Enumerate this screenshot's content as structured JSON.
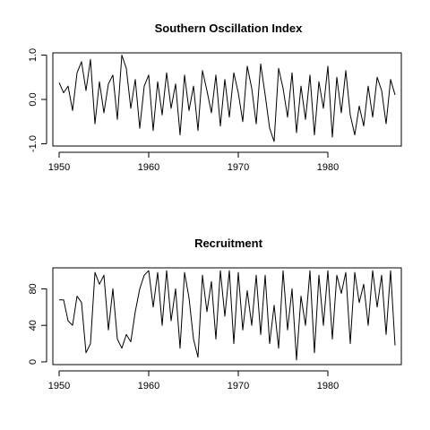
{
  "chart_data": [
    {
      "type": "line",
      "title": "Southern Oscillation Index",
      "xlabel": "",
      "ylabel": "",
      "xlim": [
        1949.3,
        1988.2
      ],
      "ylim": [
        -1.05,
        1.05
      ],
      "xticks": [
        1950,
        1960,
        1970,
        1980
      ],
      "yticks": [
        -1.0,
        0.0,
        1.0
      ],
      "ytick_labels": [
        "-1.0",
        "0.0",
        "1.0"
      ],
      "grid": false,
      "x": [
        1950.0,
        1950.5,
        1951.0,
        1951.5,
        1952.0,
        1952.5,
        1953.0,
        1953.5,
        1954.0,
        1954.5,
        1955.0,
        1955.5,
        1956.0,
        1956.5,
        1957.0,
        1957.5,
        1958.0,
        1958.5,
        1959.0,
        1959.5,
        1960.0,
        1960.5,
        1961.0,
        1961.5,
        1962.0,
        1962.5,
        1963.0,
        1963.5,
        1964.0,
        1964.5,
        1965.0,
        1965.5,
        1966.0,
        1966.5,
        1967.0,
        1967.5,
        1968.0,
        1968.5,
        1969.0,
        1969.5,
        1970.0,
        1970.5,
        1971.0,
        1971.5,
        1972.0,
        1972.5,
        1973.0,
        1973.5,
        1974.0,
        1974.5,
        1975.0,
        1975.5,
        1976.0,
        1976.5,
        1977.0,
        1977.5,
        1978.0,
        1978.5,
        1979.0,
        1979.5,
        1980.0,
        1980.5,
        1981.0,
        1981.5,
        1982.0,
        1982.5,
        1983.0,
        1983.5,
        1984.0,
        1984.5,
        1985.0,
        1985.5,
        1986.0,
        1986.5,
        1987.0,
        1987.5
      ],
      "series": [
        {
          "values": [
            0.38,
            0.15,
            0.3,
            -0.25,
            0.6,
            0.85,
            0.2,
            0.9,
            -0.55,
            0.4,
            -0.3,
            0.35,
            0.55,
            -0.45,
            1.0,
            0.7,
            -0.2,
            0.45,
            -0.65,
            0.3,
            0.55,
            -0.7,
            0.4,
            -0.35,
            0.6,
            -0.2,
            0.35,
            -0.8,
            0.55,
            -0.25,
            0.3,
            -0.7,
            0.65,
            0.2,
            -0.3,
            0.55,
            -0.6,
            0.45,
            -0.4,
            0.6,
            0.15,
            -0.5,
            0.75,
            0.25,
            -0.55,
            0.8,
            0.1,
            -0.65,
            -0.95,
            0.7,
            0.25,
            -0.4,
            0.6,
            -0.75,
            0.3,
            -0.45,
            0.55,
            -0.8,
            0.4,
            -0.2,
            0.75,
            -0.85,
            0.5,
            -0.3,
            0.65,
            -0.35,
            -0.8,
            -0.15,
            -0.6,
            0.3,
            -0.4,
            0.5,
            0.2,
            -0.55,
            0.45,
            0.1
          ]
        }
      ]
    },
    {
      "type": "line",
      "title": "Recruitment",
      "xlabel": "",
      "ylabel": "",
      "xlim": [
        1949.3,
        1988.2
      ],
      "ylim": [
        -3,
        103
      ],
      "xticks": [
        1950,
        1960,
        1970,
        1980
      ],
      "yticks": [
        0,
        40,
        80
      ],
      "ytick_labels": [
        "0",
        "40",
        "80"
      ],
      "grid": false,
      "x": [
        1950.0,
        1950.5,
        1951.0,
        1951.5,
        1952.0,
        1952.5,
        1953.0,
        1953.5,
        1954.0,
        1954.5,
        1955.0,
        1955.5,
        1956.0,
        1956.5,
        1957.0,
        1957.5,
        1958.0,
        1958.5,
        1959.0,
        1959.5,
        1960.0,
        1960.5,
        1961.0,
        1961.5,
        1962.0,
        1962.5,
        1963.0,
        1963.5,
        1964.0,
        1964.5,
        1965.0,
        1965.5,
        1966.0,
        1966.5,
        1967.0,
        1967.5,
        1968.0,
        1968.5,
        1969.0,
        1969.5,
        1970.0,
        1970.5,
        1971.0,
        1971.5,
        1972.0,
        1972.5,
        1973.0,
        1973.5,
        1974.0,
        1974.5,
        1975.0,
        1975.5,
        1976.0,
        1976.5,
        1977.0,
        1977.5,
        1978.0,
        1978.5,
        1979.0,
        1979.5,
        1980.0,
        1980.5,
        1981.0,
        1981.5,
        1982.0,
        1982.5,
        1983.0,
        1983.5,
        1984.0,
        1984.5,
        1985.0,
        1985.5,
        1986.0,
        1986.5,
        1987.0,
        1987.5
      ],
      "series": [
        {
          "values": [
            68,
            68,
            45,
            40,
            72,
            65,
            10,
            20,
            98,
            85,
            95,
            35,
            80,
            25,
            15,
            30,
            22,
            55,
            80,
            95,
            100,
            60,
            98,
            40,
            100,
            45,
            80,
            15,
            98,
            70,
            25,
            5,
            95,
            55,
            88,
            25,
            100,
            50,
            100,
            20,
            98,
            35,
            78,
            40,
            95,
            30,
            95,
            20,
            62,
            15,
            100,
            35,
            80,
            2,
            72,
            40,
            100,
            10,
            95,
            40,
            100,
            25,
            95,
            75,
            98,
            20,
            98,
            65,
            85,
            40,
            100,
            60,
            95,
            30,
            100,
            18
          ]
        }
      ]
    }
  ]
}
